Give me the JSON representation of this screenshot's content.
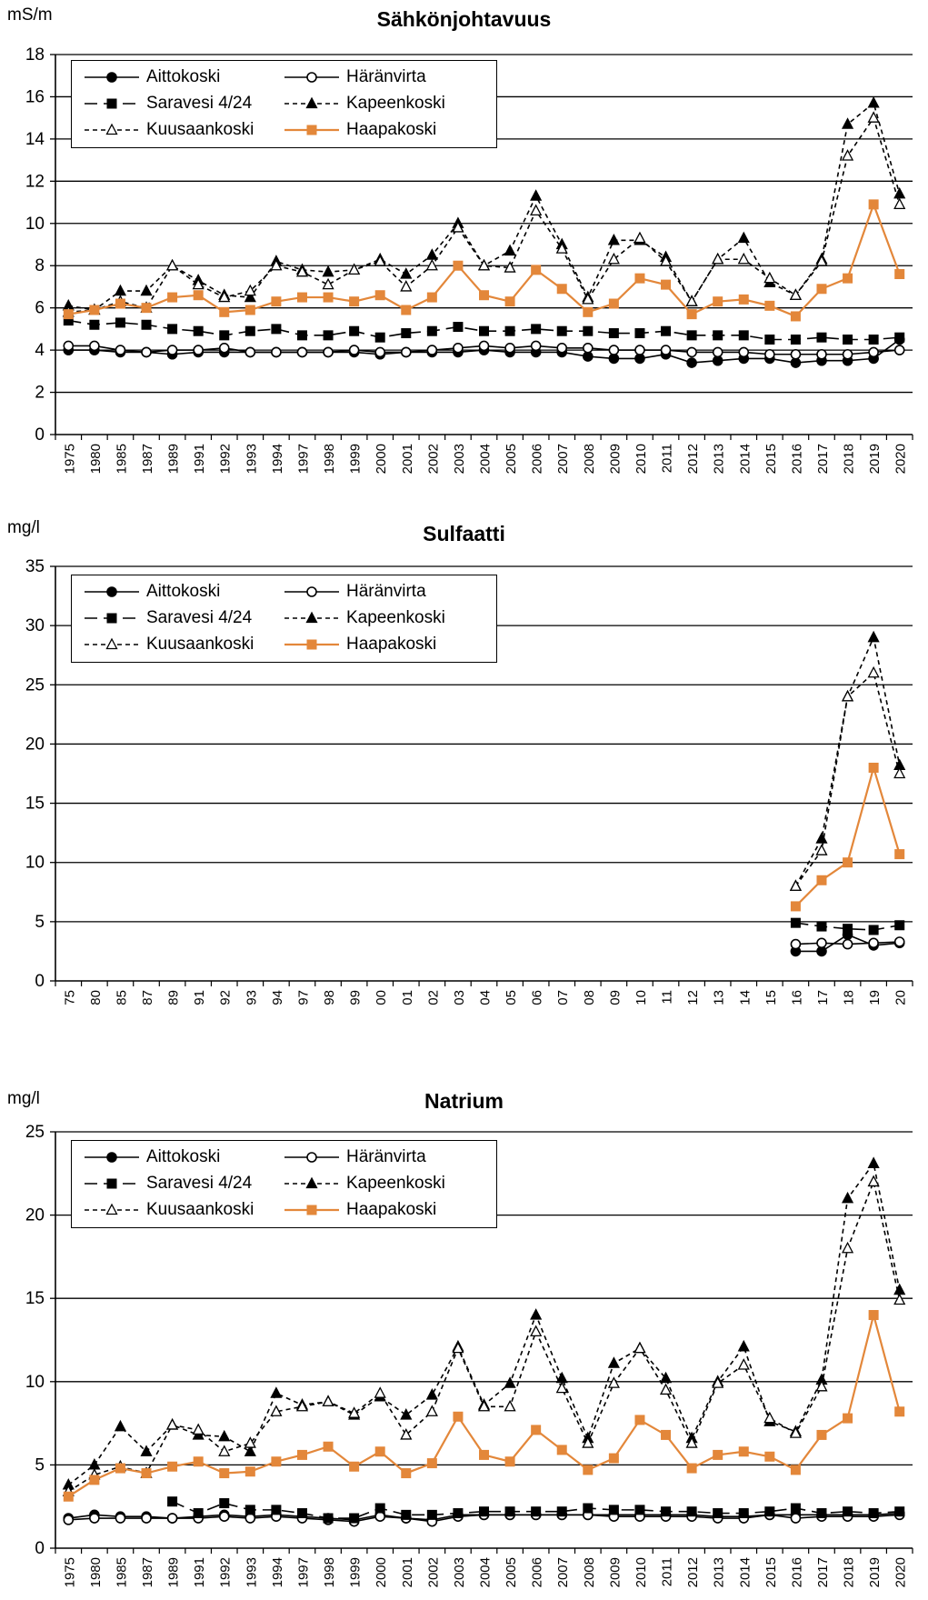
{
  "years": [
    "1975",
    "1980",
    "1985",
    "1987",
    "1989",
    "1991",
    "1992",
    "1993",
    "1994",
    "1997",
    "1998",
    "1999",
    "2000",
    "2001",
    "2002",
    "2003",
    "2004",
    "2005",
    "2006",
    "2007",
    "2008",
    "2009",
    "2010",
    "2011",
    "2012",
    "2013",
    "2014",
    "2015",
    "2016",
    "2017",
    "2018",
    "2019",
    "2020"
  ],
  "series_styles": [
    {
      "name": "Aittokoski",
      "color": "#000000",
      "dash": "",
      "marker": "circle-filled"
    },
    {
      "name": "Häränvirta",
      "color": "#000000",
      "dash": "",
      "marker": "circle-open"
    },
    {
      "name": "Saravesi 4/24",
      "color": "#000000",
      "dash": "14,7",
      "marker": "square-filled"
    },
    {
      "name": "Kapeenkoski",
      "color": "#000000",
      "dash": "5,4",
      "marker": "triangle-filled"
    },
    {
      "name": "Kuusaankoski",
      "color": "#000000",
      "dash": "5,4",
      "marker": "triangle-open"
    },
    {
      "name": "Haapakoski",
      "color": "#E3873A",
      "dash": "",
      "marker": "square-filled"
    }
  ],
  "chart_data": [
    {
      "type": "line",
      "title": "Sähkönjohtavuus",
      "ylabel": "mS/m",
      "ylim": [
        0,
        18
      ],
      "ytick_step": 2,
      "yticks": [
        "0",
        "2",
        "4",
        "6",
        "8",
        "10",
        "12",
        "14",
        "16",
        "18"
      ],
      "grid": true,
      "legend_position": "top-left",
      "series": [
        {
          "name": "Aittokoski",
          "values": [
            4.0,
            4.0,
            3.9,
            3.9,
            3.8,
            3.9,
            3.9,
            3.9,
            3.9,
            3.9,
            3.9,
            3.9,
            3.8,
            3.9,
            3.9,
            3.9,
            4.0,
            3.9,
            3.9,
            3.9,
            3.7,
            3.6,
            3.6,
            3.8,
            3.4,
            3.5,
            3.6,
            3.6,
            3.4,
            3.5,
            3.5,
            3.6,
            4.5
          ]
        },
        {
          "name": "Häränvirta",
          "values": [
            4.2,
            4.2,
            4.0,
            3.9,
            4.0,
            4.0,
            4.1,
            3.9,
            3.9,
            3.9,
            3.9,
            4.0,
            3.9,
            3.9,
            4.0,
            4.1,
            4.2,
            4.1,
            4.2,
            4.1,
            4.1,
            4.0,
            4.0,
            4.0,
            3.9,
            3.9,
            3.9,
            3.8,
            3.8,
            3.8,
            3.8,
            3.9,
            4.0
          ]
        },
        {
          "name": "Saravesi 4/24",
          "values": [
            5.4,
            5.2,
            5.3,
            5.2,
            5.0,
            4.9,
            4.7,
            4.9,
            5.0,
            4.7,
            4.7,
            4.9,
            4.6,
            4.8,
            4.9,
            5.1,
            4.9,
            4.9,
            5.0,
            4.9,
            4.9,
            4.8,
            4.8,
            4.9,
            4.7,
            4.7,
            4.7,
            4.5,
            4.5,
            4.6,
            4.5,
            4.5,
            4.6
          ]
        },
        {
          "name": "Kapeenkoski",
          "values": [
            6.1,
            5.9,
            6.8,
            6.8,
            8.0,
            7.3,
            6.6,
            6.5,
            8.2,
            7.8,
            7.7,
            7.8,
            8.3,
            7.6,
            8.5,
            10.0,
            8.0,
            8.7,
            11.3,
            9.0,
            6.5,
            9.2,
            9.2,
            8.4,
            6.3,
            8.3,
            9.3,
            7.2,
            6.6,
            8.3,
            14.7,
            15.7,
            11.4
          ]
        },
        {
          "name": "Kuusaankoski",
          "values": [
            5.8,
            5.9,
            6.3,
            6.0,
            8.0,
            7.1,
            6.5,
            6.8,
            8.0,
            7.7,
            7.1,
            7.8,
            8.2,
            7.0,
            8.0,
            9.8,
            8.0,
            7.9,
            10.6,
            8.8,
            6.4,
            8.3,
            9.3,
            8.2,
            6.3,
            8.3,
            8.3,
            7.4,
            6.6,
            8.2,
            13.2,
            15.0,
            10.9
          ]
        },
        {
          "name": "Haapakoski",
          "values": [
            5.7,
            5.9,
            6.2,
            6.0,
            6.5,
            6.6,
            5.8,
            5.9,
            6.3,
            6.5,
            6.5,
            6.3,
            6.6,
            5.9,
            6.5,
            8.0,
            6.6,
            6.3,
            7.8,
            6.9,
            5.8,
            6.2,
            7.4,
            7.1,
            5.7,
            6.3,
            6.4,
            6.1,
            5.6,
            6.9,
            7.4,
            10.9,
            7.6
          ]
        }
      ]
    },
    {
      "type": "line",
      "title": "Sulfaatti",
      "ylabel": "mg/l",
      "ylim": [
        0,
        35
      ],
      "ytick_step": 5,
      "yticks": [
        "0",
        "5",
        "10",
        "15",
        "20",
        "25",
        "30",
        "35"
      ],
      "grid": true,
      "legend_position": "top-left",
      "series": [
        {
          "name": "Aittokoski",
          "values": [
            null,
            null,
            null,
            null,
            null,
            null,
            null,
            null,
            null,
            null,
            null,
            null,
            null,
            null,
            null,
            null,
            null,
            null,
            null,
            null,
            null,
            null,
            null,
            null,
            null,
            null,
            null,
            null,
            2.5,
            2.5,
            3.9,
            3.0,
            3.2
          ]
        },
        {
          "name": "Häränvirta",
          "values": [
            null,
            null,
            null,
            null,
            null,
            null,
            null,
            null,
            null,
            null,
            null,
            null,
            null,
            null,
            null,
            null,
            null,
            null,
            null,
            null,
            null,
            null,
            null,
            null,
            null,
            null,
            null,
            null,
            3.1,
            3.2,
            3.1,
            3.2,
            3.3
          ]
        },
        {
          "name": "Saravesi 4/24",
          "values": [
            null,
            null,
            null,
            null,
            null,
            null,
            null,
            null,
            null,
            null,
            null,
            null,
            null,
            null,
            null,
            null,
            null,
            null,
            null,
            null,
            null,
            null,
            null,
            null,
            null,
            null,
            null,
            null,
            4.9,
            4.6,
            4.4,
            4.3,
            4.7
          ]
        },
        {
          "name": "Kapeenkoski",
          "values": [
            null,
            null,
            null,
            null,
            null,
            null,
            null,
            null,
            null,
            null,
            null,
            null,
            null,
            null,
            null,
            null,
            null,
            null,
            null,
            null,
            null,
            null,
            null,
            null,
            null,
            null,
            null,
            null,
            8.0,
            12.0,
            24.0,
            29.0,
            18.2
          ]
        },
        {
          "name": "Kuusaankoski",
          "values": [
            null,
            null,
            null,
            null,
            null,
            null,
            null,
            null,
            null,
            null,
            null,
            null,
            null,
            null,
            null,
            null,
            null,
            null,
            null,
            null,
            null,
            null,
            null,
            null,
            null,
            null,
            null,
            null,
            8.0,
            11.0,
            24.0,
            26.0,
            17.5
          ]
        },
        {
          "name": "Haapakoski",
          "values": [
            null,
            null,
            null,
            null,
            null,
            null,
            null,
            null,
            null,
            null,
            null,
            null,
            null,
            null,
            null,
            null,
            null,
            null,
            null,
            null,
            null,
            null,
            null,
            null,
            null,
            null,
            null,
            null,
            6.3,
            8.5,
            10.0,
            18.0,
            10.7
          ]
        }
      ]
    },
    {
      "type": "line",
      "title": "Natrium",
      "ylabel": "mg/l",
      "ylim": [
        0,
        25
      ],
      "ytick_step": 5,
      "yticks": [
        "0",
        "5",
        "10",
        "15",
        "20",
        "25"
      ],
      "grid": true,
      "legend_position": "top-left",
      "series": [
        {
          "name": "Aittokoski",
          "values": [
            1.8,
            2.0,
            1.9,
            1.9,
            1.8,
            1.9,
            2.0,
            1.9,
            2.0,
            1.9,
            1.8,
            1.7,
            2.0,
            1.8,
            1.7,
            2.0,
            2.0,
            2.0,
            2.0,
            2.0,
            2.0,
            2.0,
            2.0,
            2.0,
            2.0,
            1.9,
            1.9,
            2.0,
            2.0,
            2.0,
            2.0,
            2.0,
            2.1
          ]
        },
        {
          "name": "Häränvirta",
          "values": [
            1.7,
            1.8,
            1.8,
            1.8,
            1.8,
            1.8,
            1.9,
            1.8,
            1.9,
            1.8,
            1.7,
            1.6,
            1.9,
            1.8,
            1.6,
            1.9,
            2.0,
            2.0,
            2.0,
            2.0,
            2.0,
            1.9,
            1.9,
            1.9,
            1.9,
            1.8,
            1.8,
            2.0,
            1.8,
            1.9,
            1.9,
            1.9,
            2.0
          ]
        },
        {
          "name": "Saravesi 4/24",
          "values": [
            null,
            null,
            null,
            null,
            2.8,
            2.1,
            2.7,
            2.3,
            2.3,
            2.1,
            1.8,
            1.8,
            2.4,
            2.0,
            2.0,
            2.1,
            2.2,
            2.2,
            2.2,
            2.2,
            2.4,
            2.3,
            2.3,
            2.2,
            2.2,
            2.1,
            2.1,
            2.2,
            2.4,
            2.1,
            2.2,
            2.1,
            2.2
          ]
        },
        {
          "name": "Kapeenkoski",
          "values": [
            3.8,
            5.0,
            7.3,
            5.8,
            7.4,
            6.8,
            6.7,
            5.8,
            9.3,
            8.6,
            8.8,
            8.0,
            9.1,
            8.0,
            9.2,
            12.1,
            8.6,
            9.9,
            14.0,
            10.2,
            6.6,
            11.1,
            12.0,
            10.2,
            6.6,
            10.0,
            12.1,
            7.6,
            7.0,
            10.1,
            21.0,
            23.1,
            15.5
          ]
        },
        {
          "name": "Kuusaankoski",
          "values": [
            3.4,
            4.4,
            4.9,
            4.5,
            7.4,
            7.1,
            5.8,
            6.3,
            8.2,
            8.5,
            8.8,
            8.1,
            9.3,
            6.8,
            8.2,
            12.0,
            8.5,
            8.5,
            13.0,
            9.6,
            6.3,
            9.9,
            12.0,
            9.5,
            6.3,
            9.9,
            11.0,
            7.8,
            6.9,
            9.7,
            18.0,
            22.0,
            14.9
          ]
        },
        {
          "name": "Haapakoski",
          "values": [
            3.1,
            4.1,
            4.8,
            4.5,
            4.9,
            5.2,
            4.5,
            4.6,
            5.2,
            5.6,
            6.1,
            4.9,
            5.8,
            4.5,
            5.1,
            7.9,
            5.6,
            5.2,
            7.1,
            5.9,
            4.7,
            5.4,
            7.7,
            6.8,
            4.8,
            5.6,
            5.8,
            5.5,
            4.7,
            6.8,
            7.8,
            14.0,
            8.2
          ]
        }
      ]
    }
  ]
}
